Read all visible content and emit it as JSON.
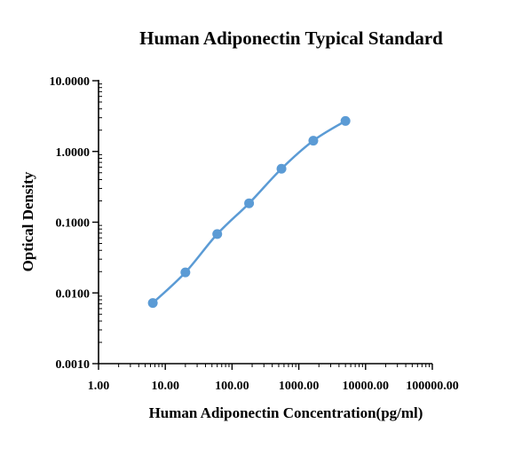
{
  "chart_data": {
    "type": "line",
    "title": "Human Adiponectin Typical Standard",
    "xlabel": "Human Adiponectin Concentration(pg/ml)",
    "ylabel": "Optical Density",
    "x_scale": "log",
    "y_scale": "log",
    "xlim": [
      1,
      100000
    ],
    "ylim": [
      0.001,
      10
    ],
    "x_ticks": [
      {
        "value": 1,
        "label": "1.00"
      },
      {
        "value": 10,
        "label": "10.00"
      },
      {
        "value": 100,
        "label": "100.00"
      },
      {
        "value": 1000,
        "label": "1000.00"
      },
      {
        "value": 10000,
        "label": "10000.00"
      },
      {
        "value": 100000,
        "label": "100000.00"
      }
    ],
    "y_ticks": [
      {
        "value": 0.001,
        "label": "0.0010"
      },
      {
        "value": 0.01,
        "label": "0.0100"
      },
      {
        "value": 0.1,
        "label": "0.1000"
      },
      {
        "value": 1,
        "label": "1.0000"
      },
      {
        "value": 10,
        "label": "10.0000"
      }
    ],
    "grid": false,
    "series": [
      {
        "color": "#5b9bd5",
        "x": [
          6.5,
          20,
          60,
          180,
          550,
          1650,
          5000
        ],
        "y": [
          0.0072,
          0.0195,
          0.068,
          0.185,
          0.57,
          1.42,
          2.7
        ]
      }
    ]
  }
}
